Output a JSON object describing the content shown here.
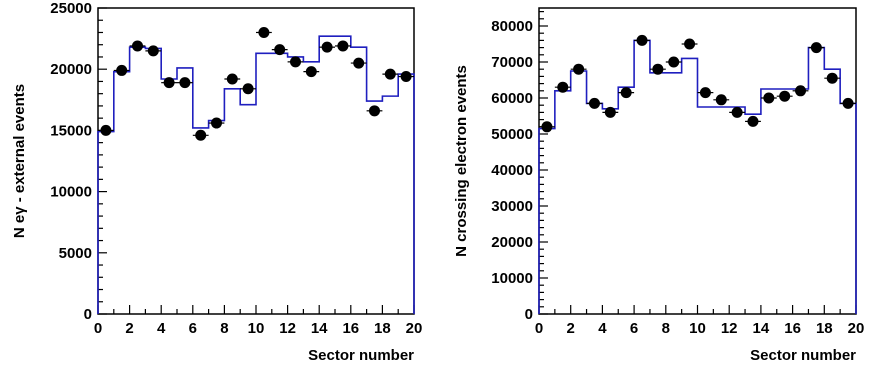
{
  "chart_data": [
    {
      "type": "scatter",
      "title": "",
      "xlabel": "Sector number",
      "ylabel": "N eγ - external events",
      "xlim": [
        0,
        20
      ],
      "ylim": [
        0,
        25000
      ],
      "x_ticks": [
        0,
        2,
        4,
        6,
        8,
        10,
        12,
        14,
        16,
        18,
        20
      ],
      "x_tick_labels": [
        "0",
        "2",
        "4",
        "6",
        "8",
        "10",
        "12",
        "14",
        "16",
        "18",
        "20"
      ],
      "y_ticks": [
        0,
        5000,
        10000,
        15000,
        20000,
        25000
      ],
      "y_tick_labels": [
        "0",
        "5000",
        "10000",
        "15000",
        "20000",
        "25000"
      ],
      "grid": false,
      "legend": "none",
      "series": [
        {
          "kind": "points",
          "color": "#000000",
          "x": [
            0.5,
            1.5,
            2.5,
            3.5,
            4.5,
            5.5,
            6.5,
            7.5,
            8.5,
            9.5,
            10.5,
            11.5,
            12.5,
            13.5,
            14.5,
            15.5,
            16.5,
            17.5,
            18.5,
            19.5
          ],
          "y": [
            15000,
            19900,
            21900,
            21500,
            18900,
            18900,
            14600,
            15600,
            19200,
            18400,
            23000,
            21600,
            20600,
            19800,
            21800,
            21900,
            20500,
            16600,
            19600,
            19400
          ]
        },
        {
          "kind": "histogram",
          "color": "#1f1fbf",
          "bin_edges": [
            0,
            1,
            2,
            3,
            4,
            5,
            6,
            7,
            8,
            9,
            10,
            11,
            12,
            13,
            14,
            15,
            16,
            17,
            18,
            19,
            20
          ],
          "values": [
            14900,
            19800,
            21800,
            21700,
            19200,
            20100,
            15200,
            15800,
            18400,
            17100,
            21300,
            21300,
            21000,
            20600,
            22700,
            22700,
            21800,
            17400,
            17800,
            19600
          ]
        }
      ]
    },
    {
      "type": "scatter",
      "title": "",
      "xlabel": "Sector number",
      "ylabel": "N crossing electron events",
      "xlim": [
        0,
        20
      ],
      "ylim": [
        0,
        85000
      ],
      "x_ticks": [
        0,
        2,
        4,
        6,
        8,
        10,
        12,
        14,
        16,
        18,
        20
      ],
      "x_tick_labels": [
        "0",
        "2",
        "4",
        "6",
        "8",
        "10",
        "12",
        "14",
        "16",
        "18",
        "20"
      ],
      "y_ticks": [
        0,
        10000,
        20000,
        30000,
        40000,
        50000,
        60000,
        70000,
        80000
      ],
      "y_tick_labels": [
        "0",
        "10000",
        "20000",
        "30000",
        "40000",
        "50000",
        "60000",
        "70000",
        "80000"
      ],
      "grid": false,
      "legend": "none",
      "series": [
        {
          "kind": "points",
          "color": "#000000",
          "x": [
            0.5,
            1.5,
            2.5,
            3.5,
            4.5,
            5.5,
            6.5,
            7.5,
            8.5,
            9.5,
            10.5,
            11.5,
            12.5,
            13.5,
            14.5,
            15.5,
            16.5,
            17.5,
            18.5,
            19.5
          ],
          "y": [
            52000,
            63000,
            68000,
            58500,
            56000,
            61500,
            76000,
            68000,
            70000,
            75000,
            61500,
            59500,
            56000,
            53500,
            60000,
            60500,
            62000,
            74000,
            65500,
            58500
          ]
        },
        {
          "kind": "histogram",
          "color": "#1f1fbf",
          "bin_edges": [
            0,
            1,
            2,
            3,
            4,
            5,
            6,
            7,
            8,
            9,
            10,
            11,
            12,
            13,
            14,
            15,
            16,
            17,
            18,
            19,
            20
          ],
          "values": [
            51500,
            62000,
            67500,
            58500,
            57000,
            63000,
            76000,
            67000,
            67000,
            71000,
            57500,
            57500,
            57500,
            55500,
            62500,
            62500,
            62500,
            74000,
            68000,
            58500
          ]
        }
      ]
    }
  ]
}
